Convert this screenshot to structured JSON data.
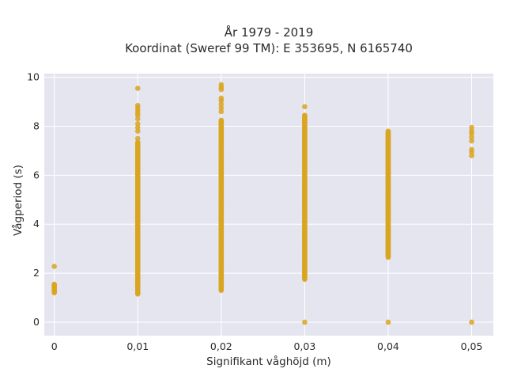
{
  "chart_data": {
    "type": "scatter",
    "title_line1": "År 1979 - 2019",
    "title_line2": "Koordinat (Sweref 99 TM): E 353695, N 6165740",
    "xlabel": "Signifikant våghöjd (m)",
    "ylabel": "Vågperiod (s)",
    "x_ticks": [
      "0",
      "0,01",
      "0,02",
      "0,03",
      "0,04",
      "0,05"
    ],
    "y_ticks": [
      "0",
      "2",
      "4",
      "6",
      "8",
      "10"
    ],
    "xlim": [
      -0.0012,
      0.0526
    ],
    "ylim": [
      -0.55,
      10.15
    ],
    "marker_color": "#DAA520",
    "plot_bg": "#E5E5F0",
    "grid": true,
    "series": [
      {
        "x": 0,
        "dense_ranges": [
          [
            1.2,
            1.55
          ]
        ],
        "points": [
          2.28
        ]
      },
      {
        "x": 0.01,
        "dense_ranges": [
          [
            1.15,
            7.35
          ]
        ],
        "points": [
          7.5,
          7.8,
          7.95,
          8.1,
          8.3,
          8.45,
          8.55,
          8.65,
          8.75,
          8.85,
          9.55
        ]
      },
      {
        "x": 0.02,
        "dense_ranges": [
          [
            1.3,
            8.25
          ]
        ],
        "points": [
          8.6,
          8.75,
          8.9,
          9.05,
          9.15,
          9.5,
          9.6,
          9.7
        ]
      },
      {
        "x": 0.03,
        "dense_ranges": [
          [
            1.75,
            8.45
          ]
        ],
        "points": [
          0,
          8.8
        ]
      },
      {
        "x": 0.04,
        "dense_ranges": [
          [
            2.65,
            7.8
          ]
        ],
        "points": [
          0
        ]
      },
      {
        "x": 0.05,
        "dense_ranges": [],
        "points": [
          0,
          6.8,
          6.95,
          7.05,
          7.4,
          7.55,
          7.7,
          7.8,
          7.95
        ]
      }
    ]
  }
}
